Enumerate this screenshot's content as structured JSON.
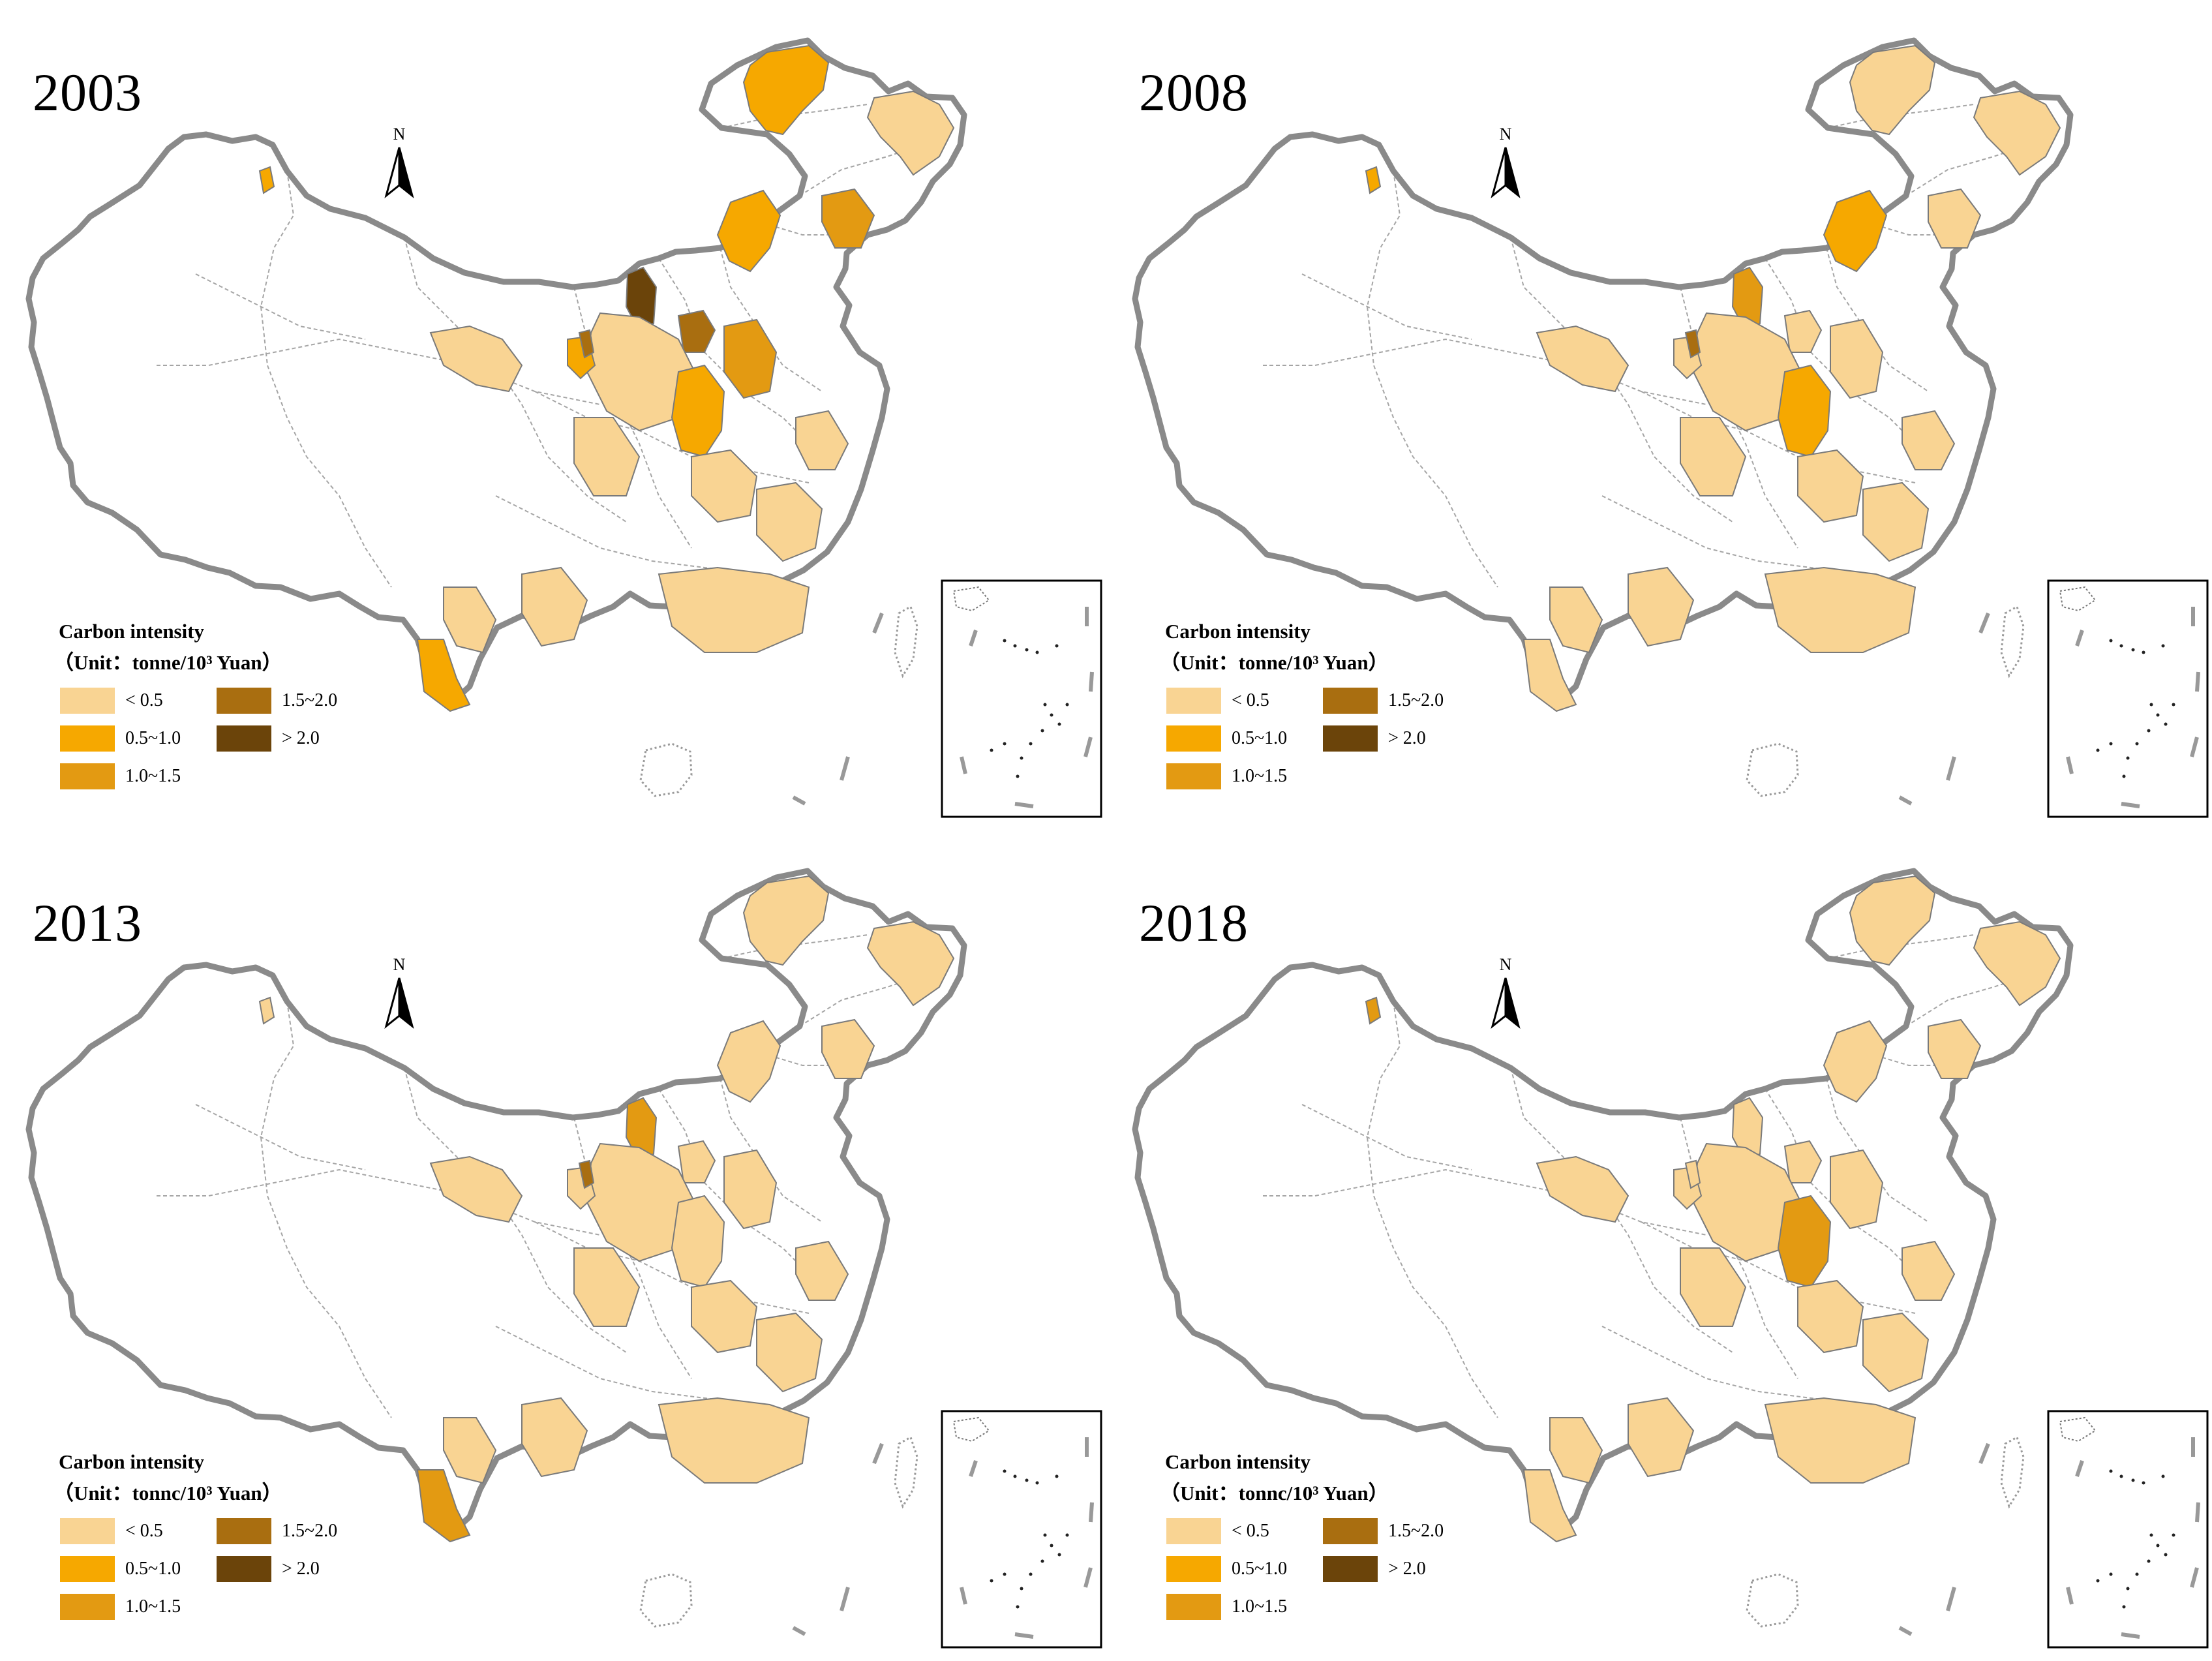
{
  "legend": {
    "title": "Carbon intensity",
    "unit": "（Unit：tonne/10³ Yuan）",
    "classes": [
      {
        "label": "< 0.5",
        "color": "#f9d493"
      },
      {
        "label": "0.5~1.0",
        "color": "#f6a800"
      },
      {
        "label": "1.0~1.5",
        "color": "#e39a12"
      },
      {
        "label": "1.5~2.0",
        "color": "#a96e10"
      },
      {
        "label": "> 2.0",
        "color": "#6b440a"
      }
    ]
  },
  "north_label": "N",
  "panels": [
    {
      "year": "2003",
      "unit": "（Unit：tonne/10³ Yuan）",
      "fills": [
        "#f6a800",
        "#f9d493",
        "#f6a800",
        "#6b440a",
        "#a96e10",
        "#f9d493",
        "#f6a800",
        "#e39a12",
        "#f9d493",
        "#f6a800",
        "#a96e10",
        "#f9d493",
        "#f9d493",
        "#f6a800",
        "#f9d493",
        "#f9d493",
        "#f6a800",
        "#f9d493",
        "#f9d493",
        "#e39a12",
        "#f9d493"
      ]
    },
    {
      "year": "2008",
      "unit": "（Unit：tonne/10³ Yuan）",
      "fills": [
        "#f9d493",
        "#f9d493",
        "#f6a800",
        "#e39a12",
        "#f9d493",
        "#f9d493",
        "#f6a800",
        "#f9d493",
        "#f9d493",
        "#f9d493",
        "#a96e10",
        "#f9d493",
        "#f9d493",
        "#f6a800",
        "#f9d493",
        "#f9d493",
        "#f9d493",
        "#f9d493",
        "#f9d493",
        "#f9d493",
        "#f9d493"
      ]
    },
    {
      "year": "2013",
      "unit": "（Unit：tonnc/10³ Yuan）",
      "fills": [
        "#f9d493",
        "#f9d493",
        "#f9d493",
        "#e39a12",
        "#f9d493",
        "#f9d493",
        "#f9d493",
        "#f9d493",
        "#f9d493",
        "#f9d493",
        "#a96e10",
        "#f9d493",
        "#f9d493",
        "#f9d493",
        "#f9d493",
        "#f9d493",
        "#e39a12",
        "#f9d493",
        "#f9d493",
        "#f9d493",
        "#f9d493"
      ]
    },
    {
      "year": "2018",
      "unit": "（Unit：tonnc/10³ Yuan）",
      "fills": [
        "#f9d493",
        "#f9d493",
        "#f9d493",
        "#f9d493",
        "#f9d493",
        "#f9d493",
        "#e39a12",
        "#f9d493",
        "#f9d493",
        "#f9d493",
        "#f9d493",
        "#f9d493",
        "#f9d493",
        "#e39a12",
        "#f9d493",
        "#f9d493",
        "#f9d493",
        "#f9d493",
        "#f9d493",
        "#f9d493",
        "#f9d493"
      ]
    }
  ]
}
